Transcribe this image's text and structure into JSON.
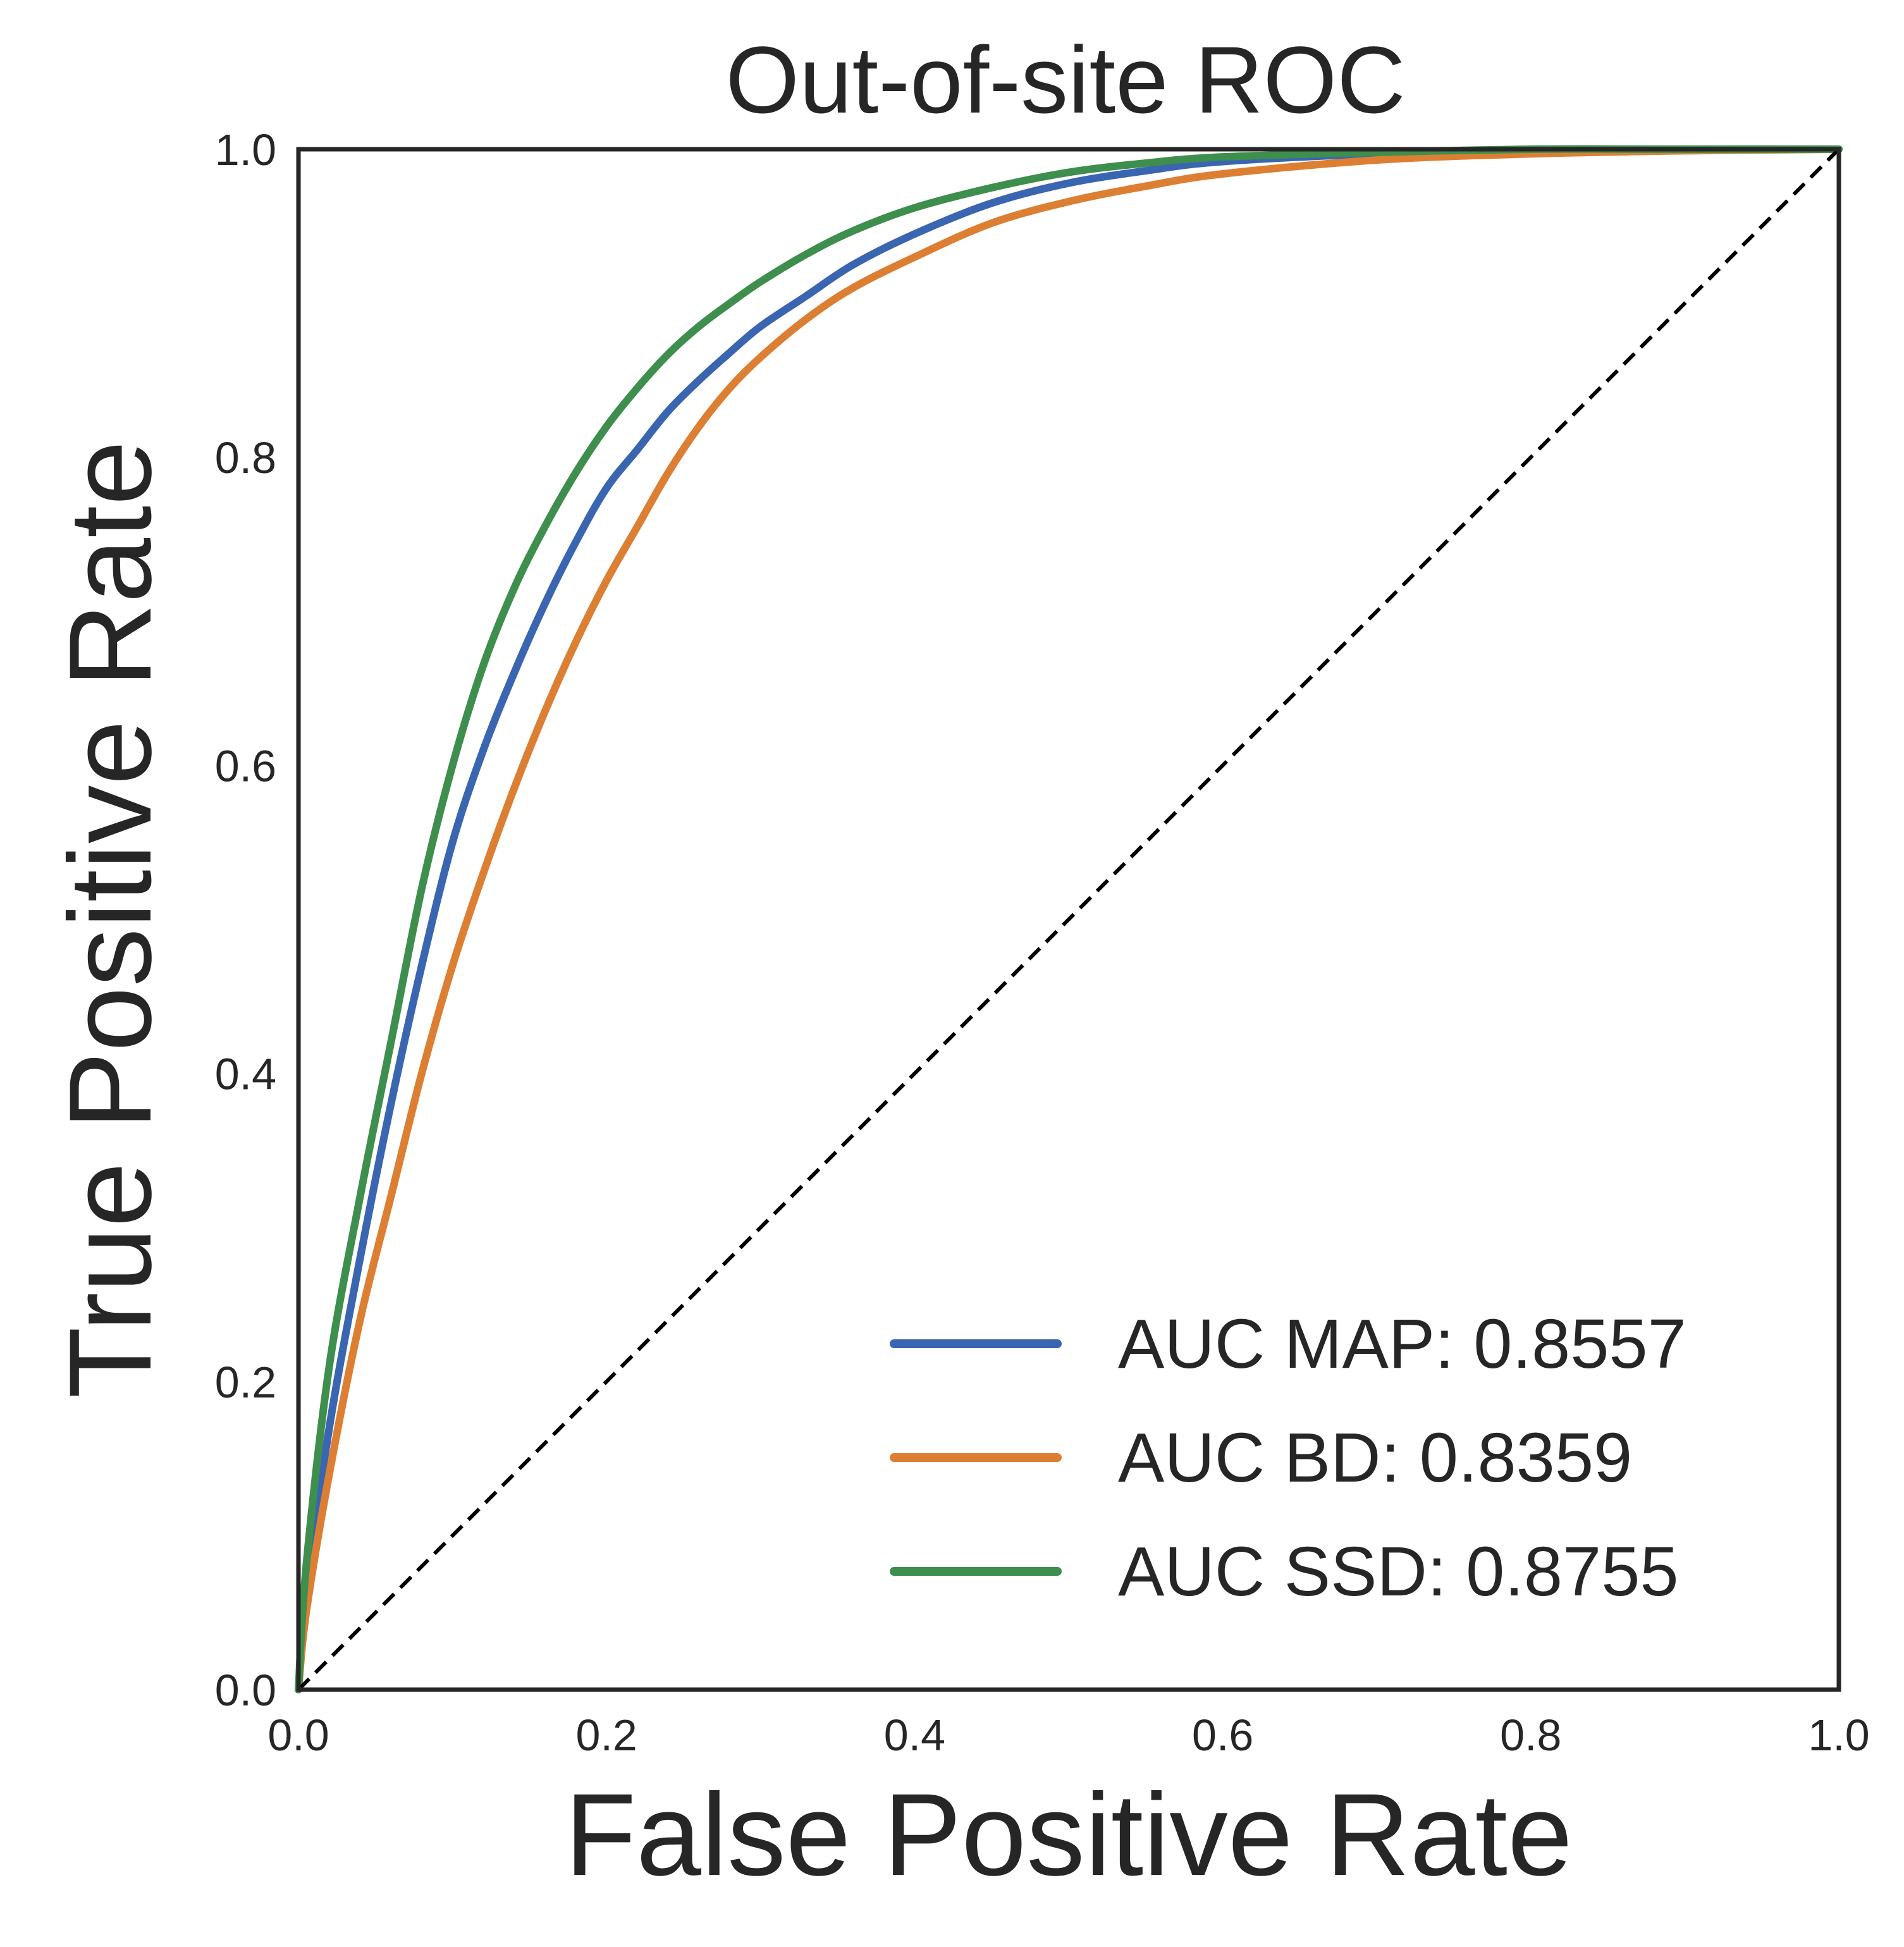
{
  "chart_data": {
    "type": "line",
    "title": "Out-of-site ROC",
    "xlabel": "False Positive Rate",
    "ylabel": "True Positive Rate",
    "xlim": [
      0.0,
      1.0
    ],
    "ylim": [
      0.0,
      1.0
    ],
    "xticks": [
      "0.0",
      "0.2",
      "0.4",
      "0.6",
      "0.8",
      "1.0"
    ],
    "yticks": [
      "0.0",
      "0.2",
      "0.4",
      "0.6",
      "0.8",
      "1.0"
    ],
    "grid": false,
    "legend_position": "lower-right",
    "series": [
      {
        "name": "AUC MAP: 0.8557",
        "color": "#3a65b0",
        "x": [
          0.0,
          0.005,
          0.02,
          0.04,
          0.06,
          0.08,
          0.1,
          0.12,
          0.14,
          0.16,
          0.18,
          0.2,
          0.22,
          0.24,
          0.26,
          0.28,
          0.3,
          0.33,
          0.36,
          0.4,
          0.45,
          0.5,
          0.55,
          0.6,
          0.7,
          0.8,
          0.9,
          1.0
        ],
        "y": [
          0.0,
          0.06,
          0.17,
          0.28,
          0.38,
          0.47,
          0.55,
          0.61,
          0.66,
          0.705,
          0.745,
          0.78,
          0.805,
          0.83,
          0.85,
          0.868,
          0.885,
          0.905,
          0.925,
          0.945,
          0.965,
          0.978,
          0.986,
          0.992,
          0.997,
          0.999,
          1.0,
          1.0
        ]
      },
      {
        "name": "AUC BD: 0.8359",
        "color": "#dd7f33",
        "x": [
          0.0,
          0.005,
          0.02,
          0.04,
          0.06,
          0.08,
          0.1,
          0.12,
          0.14,
          0.16,
          0.18,
          0.2,
          0.22,
          0.24,
          0.26,
          0.28,
          0.3,
          0.33,
          0.36,
          0.4,
          0.45,
          0.5,
          0.55,
          0.6,
          0.7,
          0.8,
          0.9,
          1.0
        ],
        "y": [
          0.0,
          0.05,
          0.14,
          0.24,
          0.32,
          0.4,
          0.47,
          0.53,
          0.585,
          0.635,
          0.68,
          0.72,
          0.755,
          0.79,
          0.82,
          0.845,
          0.865,
          0.89,
          0.91,
          0.93,
          0.952,
          0.966,
          0.976,
          0.984,
          0.993,
          0.997,
          0.999,
          1.0
        ]
      },
      {
        "name": "AUC SSD: 0.8755",
        "color": "#3e8e4e",
        "x": [
          0.0,
          0.005,
          0.02,
          0.04,
          0.06,
          0.08,
          0.1,
          0.12,
          0.14,
          0.16,
          0.18,
          0.2,
          0.22,
          0.24,
          0.26,
          0.28,
          0.3,
          0.33,
          0.36,
          0.4,
          0.45,
          0.5,
          0.55,
          0.6,
          0.7,
          0.8,
          0.9,
          1.0
        ],
        "y": [
          0.0,
          0.08,
          0.21,
          0.32,
          0.42,
          0.52,
          0.6,
          0.665,
          0.715,
          0.755,
          0.79,
          0.82,
          0.845,
          0.867,
          0.885,
          0.9,
          0.914,
          0.932,
          0.947,
          0.962,
          0.975,
          0.985,
          0.991,
          0.995,
          0.998,
          1.0,
          1.0,
          1.0
        ]
      },
      {
        "name": "",
        "color": "#000000",
        "dashed": true,
        "x": [
          0.0,
          1.0
        ],
        "y": [
          0.0,
          1.0
        ]
      }
    ]
  }
}
